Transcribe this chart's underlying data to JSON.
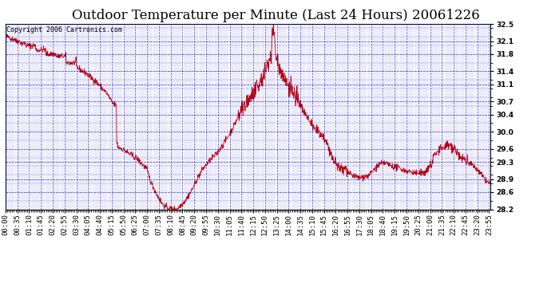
{
  "title": "Outdoor Temperature per Minute (Last 24 Hours) 20061226",
  "copyright_text": "Copyright 2006 Cartronics.com",
  "background_color": "#ffffff",
  "plot_bg_color": "#ffffff",
  "line_color": "#cc0000",
  "grid_color": "#0000bb",
  "border_color": "#000000",
  "ylim": [
    28.2,
    32.5
  ],
  "yticks": [
    28.2,
    28.6,
    28.9,
    29.3,
    29.6,
    30.0,
    30.4,
    30.7,
    31.1,
    31.4,
    31.8,
    32.1,
    32.5
  ],
  "title_fontsize": 12,
  "copyright_fontsize": 6,
  "tick_fontsize": 6.5,
  "num_minutes": 1440,
  "seed": 42
}
